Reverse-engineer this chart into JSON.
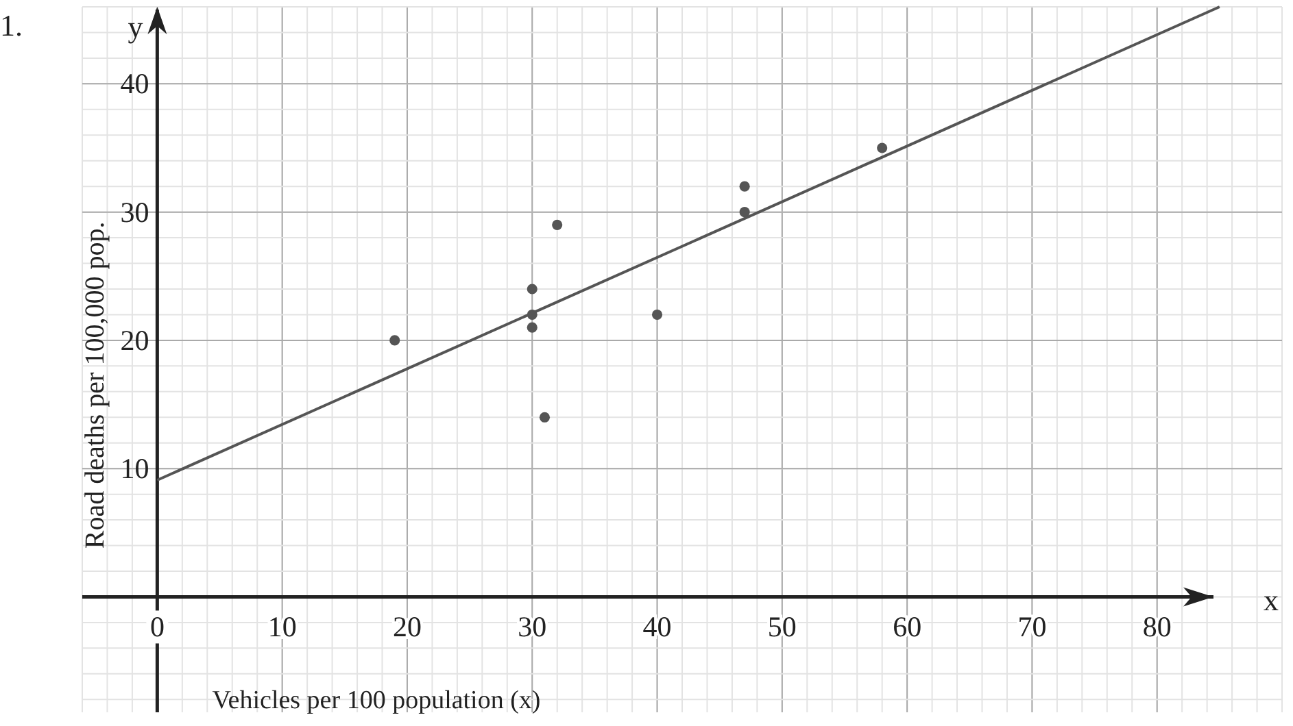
{
  "chart_data": {
    "type": "scatter",
    "xlabel": "Vehicles per 100 population (x)",
    "ylabel": "Road deaths per 100,000 pop.",
    "annotations": [
      "1.",
      "x",
      "y"
    ],
    "x": [
      19,
      30,
      30,
      30,
      32,
      31,
      40,
      47,
      47,
      58
    ],
    "series": [
      {
        "color": "#555555",
        "values": [
          20,
          24,
          22,
          21,
          29,
          14,
          22,
          32,
          30,
          35
        ]
      },
      {
        "type": "line",
        "marker": "none",
        "color": "#555555",
        "x": [
          0,
          85
        ],
        "values": [
          9.1,
          46
        ]
      }
    ],
    "xlim": [
      -6,
      90
    ],
    "ylim": [
      -9,
      46
    ],
    "xticks": [
      0,
      10,
      20,
      30,
      40,
      50,
      60,
      70,
      80
    ],
    "yticks": [
      10,
      20,
      30,
      40
    ],
    "grid": true,
    "marker": "circle",
    "line_style": "solid"
  }
}
